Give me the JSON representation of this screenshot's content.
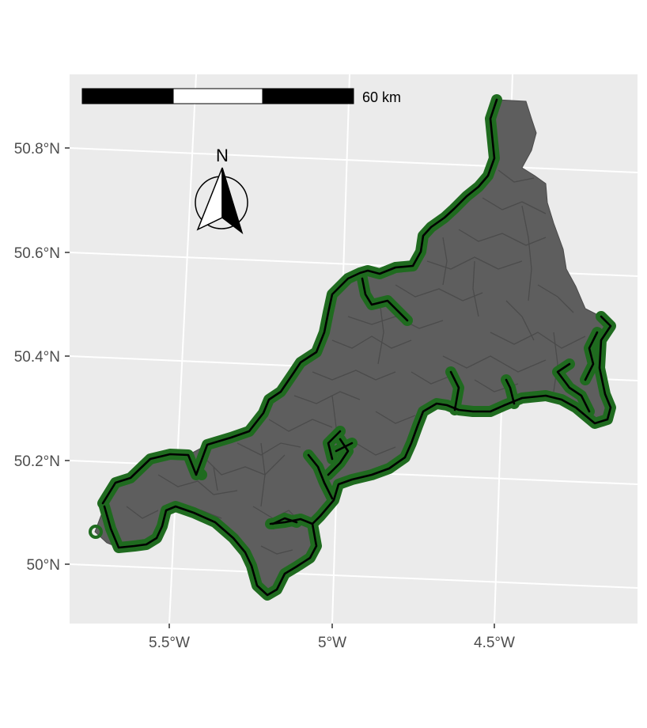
{
  "map": {
    "panel_background": "#ebebeb",
    "grid_color": "#ffffff",
    "land_color": "#5e5e5e",
    "boundary_color": "#474747",
    "buffer_color": "#1f6b1f",
    "coastline_color": "#000000",
    "y_axis": {
      "ticks": [
        "50.8°N",
        "50.6°N",
        "50.4°N",
        "50.2°N",
        "50°N"
      ]
    },
    "x_axis": {
      "ticks": [
        "5.5°W",
        "5°W",
        "4.5°W"
      ]
    },
    "scale_bar": {
      "label": "60 km",
      "segments": [
        "black",
        "white",
        "black"
      ]
    },
    "north_arrow": {
      "label": "N",
      "icon": "north-arrow-icon"
    }
  }
}
